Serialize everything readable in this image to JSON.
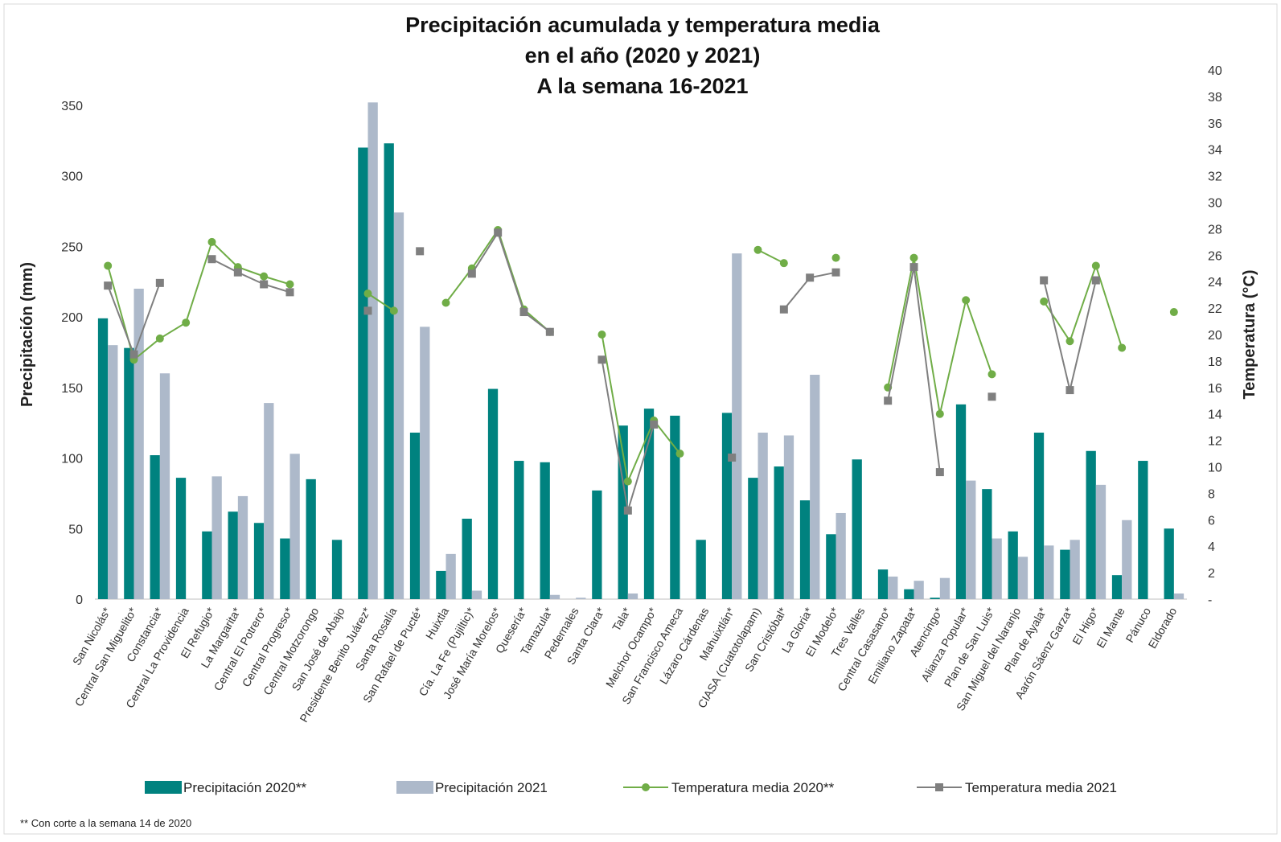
{
  "chart_data": {
    "type": "bar",
    "title_lines": [
      "Precipitación acumulada y temperatura media",
      "en el año (2020 y 2021)",
      "A la semana 16-2021"
    ],
    "ylabel": "Precipitación (mm)",
    "y2label": "Temperatura (°C)",
    "ylim": [
      0,
      375
    ],
    "y2lim": [
      0,
      40
    ],
    "yticks": [
      "0",
      "50",
      "100",
      "150",
      "200",
      "250",
      "300",
      "350"
    ],
    "y2ticks": [
      "-",
      "2",
      "4",
      "6",
      "8",
      "10",
      "12",
      "14",
      "16",
      "18",
      "20",
      "22",
      "24",
      "26",
      "28",
      "30",
      "32",
      "34",
      "36",
      "38",
      "40"
    ],
    "grid": false,
    "legend_position": "bottom",
    "categories": [
      "San Nicolás*",
      "Central San Miguelito*",
      "Constancia*",
      "Central La Providencia",
      "El Refugio*",
      "La Margarita*",
      "Central El Potrero*",
      "Central Progreso*",
      "Central Motzorongo",
      "San José de Abajo",
      "Presidente Benito Juárez*",
      "Santa Rosalía",
      "San Rafael de Pucté*",
      "Huixtla",
      "Cía. La Fe (Pujiltic)*",
      "José María Morelos*",
      "Quesería*",
      "Tamazula*",
      "Pedernales",
      "Santa Clara*",
      "Tala*",
      "Melchor Ocampo*",
      "San Francisco Ameca",
      "Lázaro Cárdenas",
      "Mahuixtlán*",
      "CIASA (Cuatotolapam)",
      "San Cristóbal*",
      "La Gloria*",
      "El Modelo*",
      "Tres Valles",
      "Central Casasano*",
      "Emiliano Zapata*",
      "Atencingo*",
      "Alianza Popular*",
      "Plan de San Luis*",
      "San Miguel del Naranjo",
      "Plan de Ayala*",
      "Aarón Sáenz Garza*",
      "El Higo*",
      "El Mante",
      "Pánuco",
      "Eldorado"
    ],
    "series": [
      {
        "name": "Precipitación 2020**",
        "kind": "bar",
        "axis": "left",
        "color": "#00827f",
        "values": [
          199,
          178,
          102,
          86,
          48,
          62,
          54,
          43,
          85,
          42,
          320,
          323,
          118,
          20,
          57,
          149,
          98,
          97,
          0,
          77,
          123,
          135,
          130,
          42,
          132,
          86,
          94,
          70,
          46,
          99,
          21,
          7,
          1,
          138,
          78,
          48,
          118,
          35,
          105,
          17,
          98,
          50
        ]
      },
      {
        "name": "Precipitación 2021",
        "kind": "bar",
        "axis": "left",
        "color": "#adb9ca",
        "values": [
          180,
          220,
          160,
          0,
          87,
          73,
          139,
          103,
          0,
          0,
          352,
          274,
          193,
          32,
          6,
          0,
          0,
          3,
          1,
          0,
          4,
          0,
          0,
          0,
          245,
          118,
          116,
          159,
          61,
          0,
          16,
          13,
          15,
          84,
          43,
          30,
          38,
          42,
          81,
          56,
          0,
          4
        ]
      },
      {
        "name": "Temperatura media 2020**",
        "kind": "line",
        "axis": "right",
        "color": "#70ad47",
        "marker": "circle",
        "values": [
          25.2,
          18.1,
          19.7,
          20.9,
          27.0,
          25.1,
          24.4,
          23.8,
          null,
          null,
          23.1,
          21.8,
          null,
          22.4,
          25.0,
          27.9,
          21.9,
          20.2,
          null,
          20.0,
          8.9,
          13.5,
          11.0,
          null,
          null,
          26.4,
          25.4,
          null,
          25.8,
          null,
          16.0,
          25.8,
          14.0,
          22.6,
          17.0,
          null,
          22.5,
          19.5,
          25.2,
          19.0,
          null,
          21.7
        ]
      },
      {
        "name": "Temperatura media 2021",
        "kind": "line",
        "axis": "right",
        "color": "#7f7f7f",
        "marker": "square",
        "values": [
          23.7,
          18.5,
          23.9,
          null,
          25.7,
          24.7,
          23.8,
          23.2,
          null,
          null,
          21.8,
          null,
          26.3,
          null,
          24.6,
          27.7,
          21.7,
          20.2,
          null,
          18.1,
          6.7,
          13.2,
          null,
          null,
          10.7,
          null,
          21.9,
          24.3,
          24.7,
          null,
          15.0,
          25.1,
          9.6,
          null,
          15.3,
          null,
          24.1,
          15.8,
          24.1,
          null,
          null,
          null
        ]
      }
    ],
    "footnote": "** Con corte a la semana 14 de 2020"
  }
}
